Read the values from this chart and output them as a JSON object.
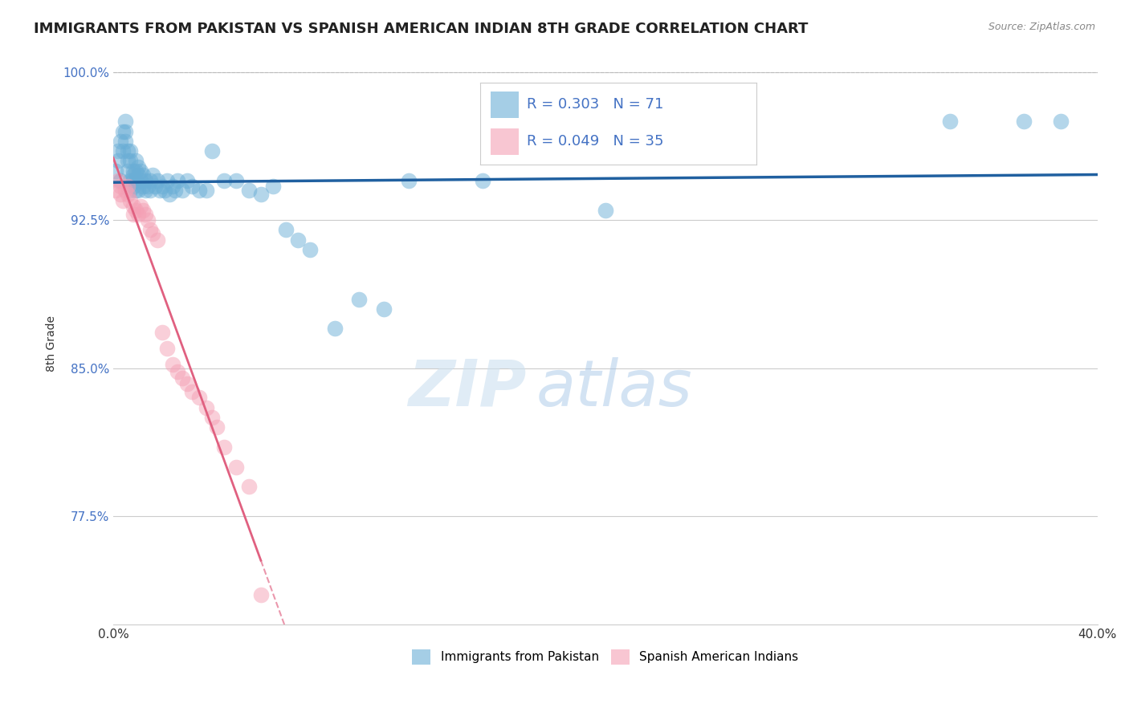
{
  "title": "IMMIGRANTS FROM PAKISTAN VS SPANISH AMERICAN INDIAN 8TH GRADE CORRELATION CHART",
  "source": "Source: ZipAtlas.com",
  "ylabel": "8th Grade",
  "xlim": [
    0.0,
    0.4
  ],
  "ylim": [
    0.72,
    1.005
  ],
  "ytick_positions": [
    0.775,
    0.85,
    0.925,
    1.0
  ],
  "ytick_labels": [
    "77.5%",
    "85.0%",
    "92.5%",
    "100.0%"
  ],
  "blue_R": 0.303,
  "blue_N": 71,
  "pink_R": 0.049,
  "pink_N": 35,
  "blue_color": "#6aaed6",
  "pink_color": "#f4a0b5",
  "trend_blue_color": "#2060a0",
  "trend_pink_color": "#e06080",
  "legend_label_blue": "Immigrants from Pakistan",
  "legend_label_pink": "Spanish American Indians",
  "background_color": "#ffffff",
  "blue_scatter_x": [
    0.001,
    0.002,
    0.002,
    0.003,
    0.003,
    0.004,
    0.004,
    0.005,
    0.005,
    0.005,
    0.006,
    0.006,
    0.006,
    0.007,
    0.007,
    0.007,
    0.007,
    0.008,
    0.008,
    0.008,
    0.008,
    0.009,
    0.009,
    0.009,
    0.009,
    0.01,
    0.01,
    0.01,
    0.011,
    0.011,
    0.012,
    0.012,
    0.013,
    0.013,
    0.014,
    0.015,
    0.015,
    0.016,
    0.017,
    0.018,
    0.019,
    0.02,
    0.021,
    0.022,
    0.023,
    0.024,
    0.025,
    0.026,
    0.028,
    0.03,
    0.032,
    0.035,
    0.038,
    0.04,
    0.045,
    0.05,
    0.055,
    0.06,
    0.065,
    0.07,
    0.075,
    0.08,
    0.09,
    0.1,
    0.11,
    0.12,
    0.15,
    0.2,
    0.34,
    0.37,
    0.385
  ],
  "blue_scatter_y": [
    0.95,
    0.955,
    0.96,
    0.945,
    0.965,
    0.96,
    0.97,
    0.965,
    0.97,
    0.975,
    0.96,
    0.955,
    0.95,
    0.955,
    0.96,
    0.945,
    0.94,
    0.95,
    0.948,
    0.945,
    0.942,
    0.955,
    0.95,
    0.945,
    0.94,
    0.948,
    0.952,
    0.94,
    0.95,
    0.945,
    0.948,
    0.942,
    0.945,
    0.94,
    0.942,
    0.945,
    0.94,
    0.948,
    0.942,
    0.945,
    0.94,
    0.942,
    0.94,
    0.945,
    0.938,
    0.942,
    0.94,
    0.945,
    0.94,
    0.945,
    0.942,
    0.94,
    0.94,
    0.96,
    0.945,
    0.945,
    0.94,
    0.938,
    0.942,
    0.92,
    0.915,
    0.91,
    0.87,
    0.885,
    0.88,
    0.945,
    0.945,
    0.93,
    0.975,
    0.975,
    0.975
  ],
  "pink_scatter_x": [
    0.001,
    0.002,
    0.003,
    0.003,
    0.004,
    0.005,
    0.006,
    0.006,
    0.007,
    0.008,
    0.008,
    0.009,
    0.01,
    0.011,
    0.012,
    0.013,
    0.014,
    0.015,
    0.016,
    0.018,
    0.02,
    0.022,
    0.024,
    0.026,
    0.028,
    0.03,
    0.032,
    0.035,
    0.038,
    0.04,
    0.042,
    0.045,
    0.05,
    0.055,
    0.06
  ],
  "pink_scatter_y": [
    0.94,
    0.945,
    0.942,
    0.938,
    0.935,
    0.94,
    0.942,
    0.938,
    0.935,
    0.932,
    0.928,
    0.93,
    0.928,
    0.932,
    0.93,
    0.928,
    0.925,
    0.92,
    0.918,
    0.915,
    0.868,
    0.86,
    0.852,
    0.848,
    0.845,
    0.842,
    0.838,
    0.835,
    0.83,
    0.825,
    0.82,
    0.81,
    0.8,
    0.79,
    0.735
  ]
}
